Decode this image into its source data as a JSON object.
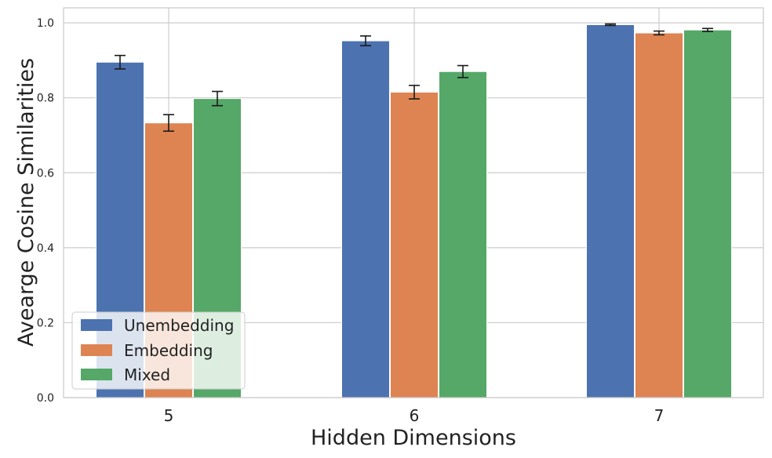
{
  "chart_data": {
    "type": "bar",
    "title": "",
    "xlabel": "Hidden Dimensions",
    "ylabel": "Avearge Cosine Similarities",
    "categories": [
      "5",
      "6",
      "7"
    ],
    "ylim": [
      0,
      1.04
    ],
    "yticks": [
      0.0,
      0.2,
      0.4,
      0.6,
      0.8,
      1.0
    ],
    "ytick_labels": [
      "0.0",
      "0.2",
      "0.4",
      "0.6",
      "0.8",
      "1.0"
    ],
    "grid": true,
    "legend_position": "lower-left",
    "series": [
      {
        "name": "Unembedding",
        "color": "#4c72b0",
        "values": [
          0.895,
          0.952,
          0.995
        ],
        "errors": [
          0.018,
          0.013,
          0.002
        ]
      },
      {
        "name": "Embedding",
        "color": "#dd8452",
        "values": [
          0.733,
          0.815,
          0.973
        ],
        "errors": [
          0.022,
          0.018,
          0.005
        ]
      },
      {
        "name": "Mixed",
        "color": "#55a868",
        "values": [
          0.798,
          0.87,
          0.981
        ],
        "errors": [
          0.019,
          0.016,
          0.004
        ]
      }
    ]
  }
}
